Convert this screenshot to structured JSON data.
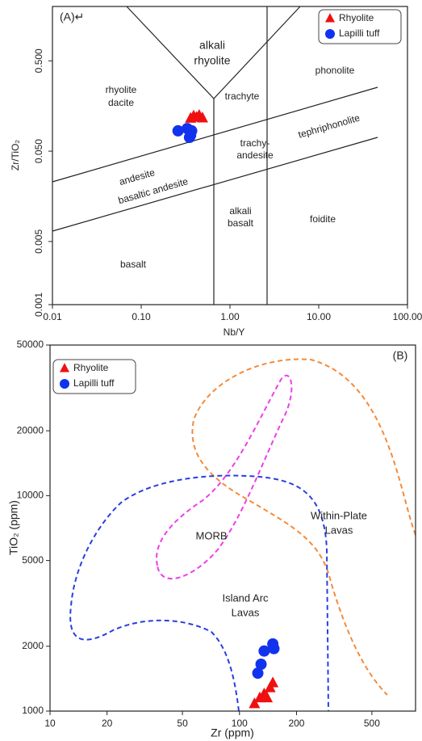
{
  "chart_data": [
    {
      "type": "scatter",
      "title": "(A)↵",
      "x_label": "Nb/Y",
      "y_label": "Zr/TiO₂",
      "log_x": true,
      "log_y": true,
      "xlim": [
        0.01,
        100
      ],
      "ylim": [
        0.001,
        2
      ],
      "xticks": [
        0.01,
        {
          "value": 0.1,
          "label": "0.10"
        },
        {
          "value": 1,
          "label": "1.00"
        },
        {
          "value": 10,
          "label": "10.00"
        },
        {
          "value": 100,
          "label": "100.00"
        }
      ],
      "yticks": [
        0.001,
        0.005,
        {
          "value": 0.05,
          "label": "0.050"
        },
        {
          "value": 0.5,
          "label": "0.500"
        }
      ],
      "legend": "upper right",
      "annotations": [
        "alkali",
        "rhyolite",
        "rhyolite",
        "dacite",
        "trachyte",
        "phonolite",
        "trachy-",
        "andesite",
        "tephriphonolite",
        "andesite",
        "basaltic andesite",
        "alkali",
        "basalt",
        "foidite",
        "basalt"
      ],
      "series": [
        {
          "name": "Rhyolite",
          "color": "#ee1111",
          "marker": "triangle",
          "x": [
            0.36,
            0.39,
            0.42,
            0.45,
            0.49
          ],
          "values": [
            0.115,
            0.122,
            0.118,
            0.124,
            0.116
          ]
        },
        {
          "name": "Lapilli tuff",
          "color": "#1133ee",
          "marker": "circle",
          "x": [
            0.26,
            0.33,
            0.36,
            0.37,
            0.35
          ],
          "values": [
            0.084,
            0.089,
            0.075,
            0.084,
            0.071
          ]
        }
      ]
    },
    {
      "type": "scatter",
      "title": "(B)",
      "x_label": "Zr (ppm)",
      "y_label": "TiO₂ (ppm)",
      "log_x": true,
      "log_y": true,
      "xlim": [
        10,
        850
      ],
      "ylim": [
        1000,
        50000
      ],
      "xticks": [
        10,
        20,
        50,
        100,
        200,
        500
      ],
      "yticks": [
        1000,
        2000,
        5000,
        10000,
        20000,
        50000
      ],
      "legend": "upper left",
      "annotations": [
        "MORB",
        "Within-Plate",
        "Lavas",
        "Island Arc",
        "Lavas"
      ],
      "series": [
        {
          "name": "Rhyolite",
          "color": "#ee1111",
          "marker": "triangle",
          "x": [
            120,
            128,
            135,
            140,
            145,
            150
          ],
          "values": [
            1080,
            1150,
            1200,
            1150,
            1280,
            1350
          ]
        },
        {
          "name": "Lapilli tuff",
          "color": "#1133ee",
          "marker": "circle",
          "x": [
            125,
            130,
            135,
            150,
            152
          ],
          "values": [
            1500,
            1650,
            1900,
            2050,
            1950
          ]
        }
      ]
    }
  ]
}
